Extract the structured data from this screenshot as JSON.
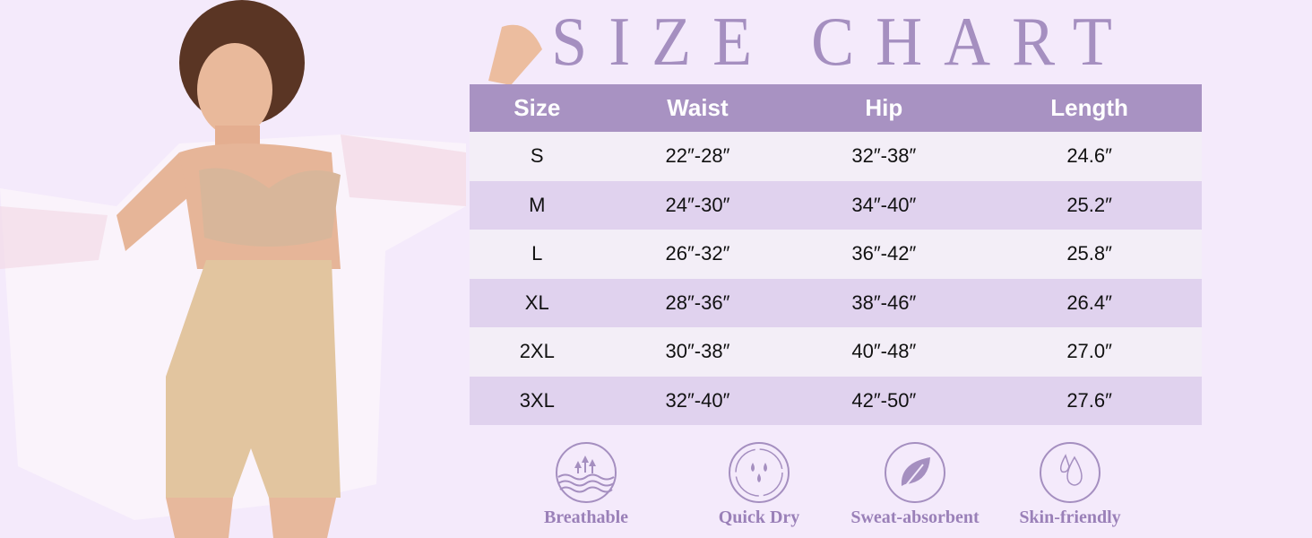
{
  "title": "SIZE CHART",
  "table": {
    "headers": [
      "Size",
      "Waist",
      "Hip",
      "Length"
    ],
    "rows": [
      [
        "S",
        "22″-28″",
        "32″-38″",
        "24.6″"
      ],
      [
        "M",
        "24″-30″",
        "34″-40″",
        "25.2″"
      ],
      [
        "L",
        "26″-32″",
        "36″-42″",
        "25.8″"
      ],
      [
        "XL",
        "28″-36″",
        "38″-46″",
        "26.4″"
      ],
      [
        "2XL",
        "30″-38″",
        "40″-48″",
        "27.0″"
      ],
      [
        "3XL",
        "32″-40″",
        "42″-50″",
        "27.6″"
      ]
    ]
  },
  "features": [
    {
      "label": "Breathable",
      "icon": "breathable-icon"
    },
    {
      "label": "Quick Dry",
      "icon": "quick-dry-icon"
    },
    {
      "label": "Sweat-absorbent",
      "icon": "leaf-icon"
    },
    {
      "label": "Skin-friendly",
      "icon": "droplets-icon"
    }
  ],
  "colors": {
    "background": "#f4eafb",
    "header": "#a892c2",
    "row_light": "#f3eef7",
    "row_dark": "#e0d2ee",
    "accent": "#a58fc0"
  }
}
